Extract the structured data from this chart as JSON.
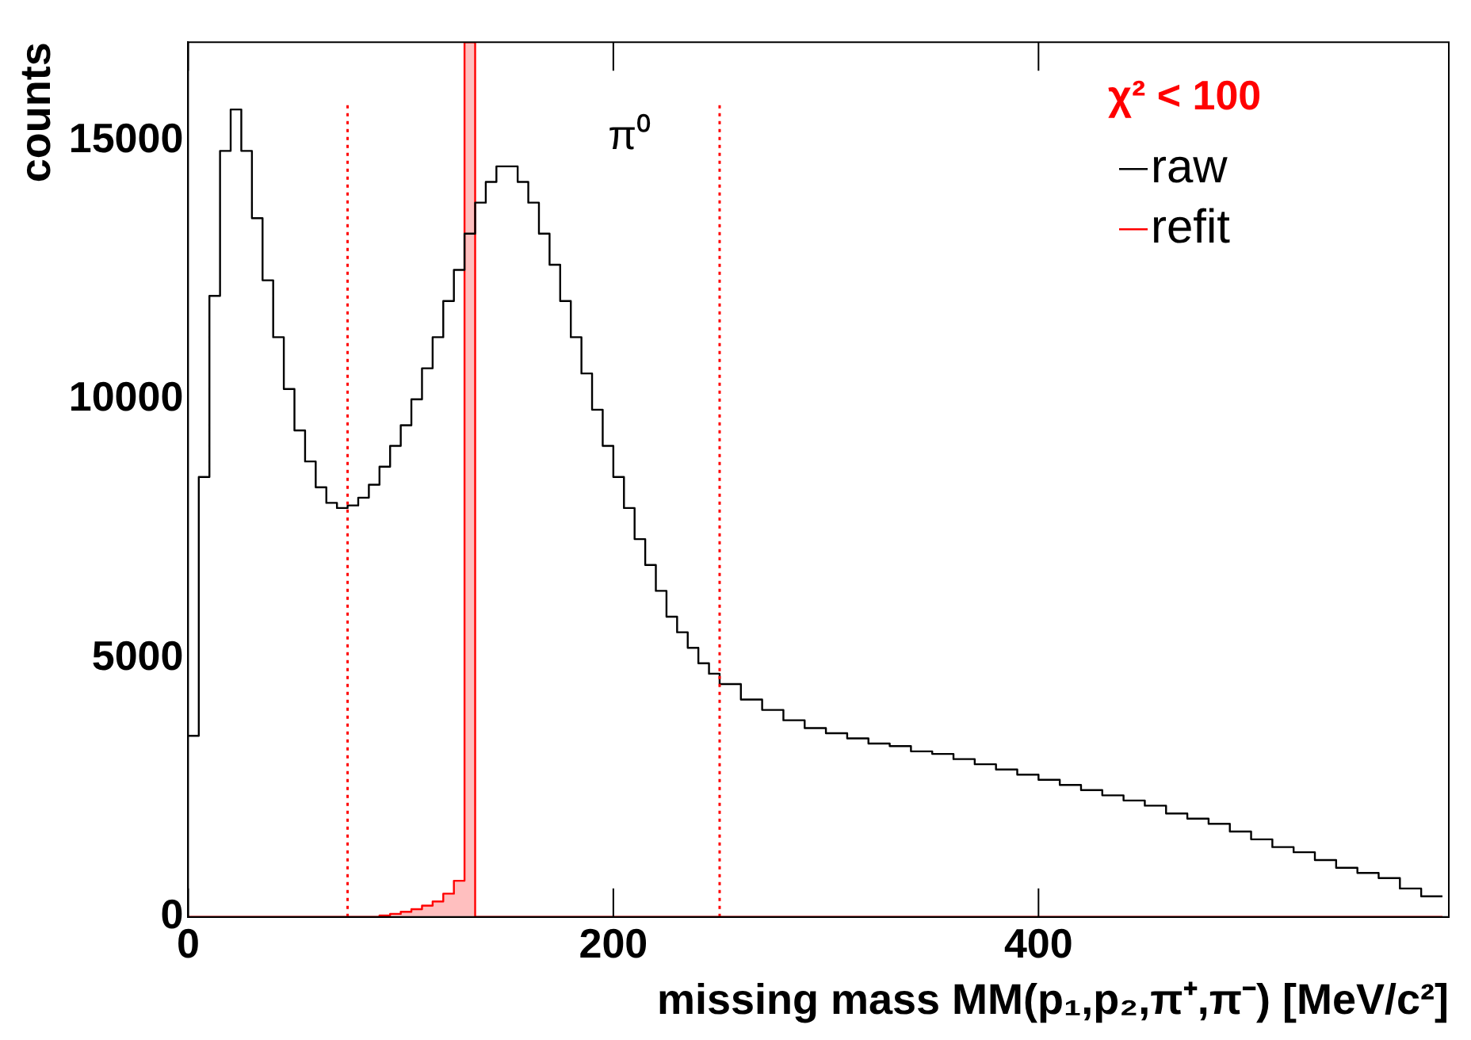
{
  "chart_data": {
    "type": "histogram",
    "xlabel": "missing mass MM(p₁,p₂,π⁺,π⁻) [MeV/c²]",
    "ylabel": "counts",
    "legend_title": "χ² < 100",
    "legend": "top right",
    "grid": false,
    "bins": [
      0,
      5,
      10,
      15,
      20,
      25,
      30,
      35,
      40,
      45,
      50,
      55,
      60,
      65,
      70,
      75,
      80,
      85,
      90,
      95,
      100,
      105,
      110,
      115,
      120,
      125,
      130,
      135,
      140,
      145,
      150,
      155,
      160,
      165,
      170,
      175,
      180,
      185,
      190,
      195,
      200,
      205,
      210,
      215,
      220,
      225,
      230,
      235,
      240,
      245,
      250,
      260,
      270,
      280,
      290,
      300,
      310,
      320,
      330,
      340,
      350,
      360,
      370,
      380,
      390,
      400,
      410,
      420,
      430,
      440,
      450,
      460,
      470,
      480,
      490,
      500,
      510,
      520,
      530,
      540,
      550,
      560,
      570,
      580,
      590
    ],
    "series": [
      {
        "name": "raw",
        "color": "#000000",
        "values": [
          3500,
          8500,
          12000,
          14800,
          15600,
          14800,
          13500,
          12300,
          11200,
          10200,
          9400,
          8800,
          8300,
          8000,
          7900,
          7950,
          8100,
          8350,
          8700,
          9100,
          9500,
          10000,
          10600,
          11200,
          11900,
          12500,
          13200,
          13800,
          14200,
          14500,
          14500,
          14200,
          13800,
          13200,
          12600,
          11900,
          11200,
          10500,
          9800,
          9100,
          8500,
          7900,
          7300,
          6800,
          6300,
          5800,
          5500,
          5200,
          4900,
          4700,
          4500,
          4200,
          4000,
          3800,
          3650,
          3550,
          3450,
          3350,
          3300,
          3200,
          3150,
          3050,
          2950,
          2850,
          2750,
          2650,
          2550,
          2450,
          2350,
          2250,
          2150,
          2000,
          1900,
          1800,
          1650,
          1500,
          1350,
          1250,
          1100,
          950,
          850,
          750,
          550,
          400
        ]
      },
      {
        "name": "refit",
        "color": "#ff0000",
        "values": [
          0,
          0,
          0,
          0,
          0,
          0,
          0,
          0,
          0,
          0,
          0,
          0,
          0,
          0,
          0,
          0,
          0,
          0,
          30,
          60,
          100,
          150,
          220,
          300,
          450,
          700,
          16900,
          0,
          0,
          0,
          0,
          0,
          0,
          0,
          0,
          0,
          0,
          0,
          0,
          0,
          0,
          0,
          0,
          0,
          0,
          0,
          0,
          0,
          0,
          0,
          0,
          0,
          0,
          0,
          0,
          0,
          0,
          0,
          0,
          0,
          0,
          0,
          0,
          0,
          0,
          0,
          0,
          0,
          0,
          0,
          0,
          0,
          0,
          0,
          0,
          0,
          0,
          0,
          0,
          0,
          0,
          0,
          0,
          0
        ]
      }
    ],
    "xlim": [
      0,
      593
    ],
    "xticks": [
      0,
      200,
      400
    ],
    "ylim": [
      0,
      16900
    ],
    "yticks": [
      0,
      5000,
      10000,
      15000
    ],
    "ref_lines": [
      {
        "axis": "x",
        "value": 75,
        "color": "#ff0000",
        "line_style": "dotted"
      },
      {
        "axis": "x",
        "value": 250,
        "color": "#ff0000",
        "line_style": "dotted"
      }
    ],
    "annotations": [
      "π⁰"
    ]
  }
}
